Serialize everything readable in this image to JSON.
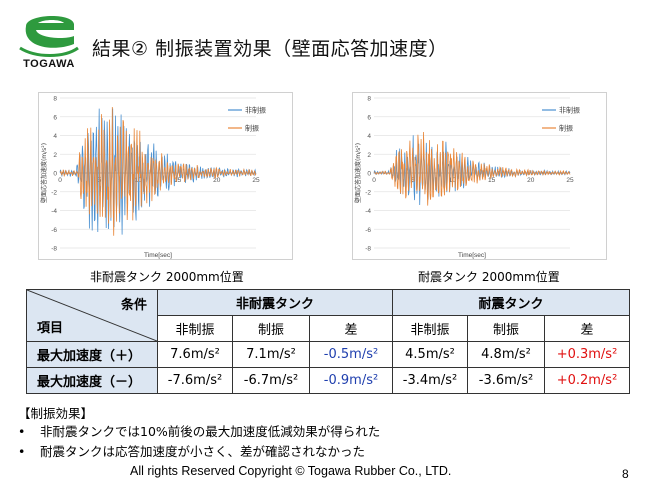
{
  "header": {
    "logo_text": "TOGAWA",
    "title": "結果②  制振装置効果（壁面応答加速度）"
  },
  "charts": {
    "left": {
      "caption": "非耐震タンク  2000mm位置",
      "ylabel": "壁面応答加速度(m/s²)",
      "xlabel": "Time[sec]",
      "legend": [
        "非制振",
        "制振"
      ],
      "xticks": [
        "0",
        "5",
        "10",
        "15",
        "20",
        "25"
      ],
      "yticks": [
        "8",
        "6",
        "4",
        "2",
        "0",
        "-2",
        "-4",
        "-6",
        "-8"
      ]
    },
    "right": {
      "caption": "耐震タンク  2000mm位置",
      "ylabel": "壁面応答加速度(m/s²)",
      "xlabel": "Time[sec]",
      "legend": [
        "非制振",
        "制振"
      ],
      "xticks": [
        "0",
        "5",
        "10",
        "15",
        "20",
        "25"
      ],
      "yticks": [
        "8",
        "6",
        "4",
        "2",
        "0",
        "-2",
        "-4",
        "-6",
        "-8"
      ]
    }
  },
  "chart_data": [
    {
      "type": "line",
      "title": "非耐震タンク 2000mm位置",
      "xlabel": "Time[sec]",
      "ylabel": "壁面応答加速度(m/s²)",
      "xlim": [
        0,
        25
      ],
      "ylim": [
        -8,
        8
      ],
      "series": [
        {
          "name": "非制振",
          "color": "#4a90d0",
          "peak_pos": 7.6,
          "peak_neg": -7.6
        },
        {
          "name": "制振",
          "color": "#e8873a",
          "peak_pos": 7.1,
          "peak_neg": -6.7
        }
      ]
    },
    {
      "type": "line",
      "title": "耐震タンク 2000mm位置",
      "xlabel": "Time[sec]",
      "ylabel": "壁面応答加速度(m/s²)",
      "xlim": [
        0,
        25
      ],
      "ylim": [
        -8,
        8
      ],
      "series": [
        {
          "name": "非制振",
          "color": "#4a90d0",
          "peak_pos": 4.5,
          "peak_neg": -3.4
        },
        {
          "name": "制振",
          "color": "#e8873a",
          "peak_pos": 4.8,
          "peak_neg": -3.6
        }
      ]
    }
  ],
  "table": {
    "corner_top": "条件",
    "corner_bottom": "項目",
    "group1": "非耐震タンク",
    "group2": "耐震タンク",
    "subheaders": [
      "非制振",
      "制振",
      "差",
      "非制振",
      "制振",
      "差"
    ],
    "rows": [
      {
        "label": "最大加速度（＋）",
        "cells": [
          "7.6m/s²",
          "7.1m/s²",
          "-0.5m/s²",
          "4.5m/s²",
          "4.8m/s²",
          "+0.3m/s²"
        ]
      },
      {
        "label": "最大加速度（－）",
        "cells": [
          "-7.6m/s²",
          "-6.7m/s²",
          "-0.9m/s²",
          "-3.4m/s²",
          "-3.6m/s²",
          "+0.2m/s²"
        ]
      }
    ]
  },
  "summary": {
    "heading": "【制振効果】",
    "bullets": [
      "非耐震タンクでは10%前後の最大加速度低減効果が得られた",
      "耐震タンクは応答加速度が小さく、差が確認されなかった"
    ]
  },
  "footer": {
    "copyright": "All  rights Reserved Copyright  © Togawa Rubber Co., LTD.",
    "page_number": "8"
  },
  "colors": {
    "uncontrolled": "#4a90d0",
    "controlled": "#e8873a",
    "header_bg": "#dce6f2",
    "negative_blue": "#1f3fae",
    "positive_red": "#e01010",
    "logo_green": "#2e9a3e"
  }
}
